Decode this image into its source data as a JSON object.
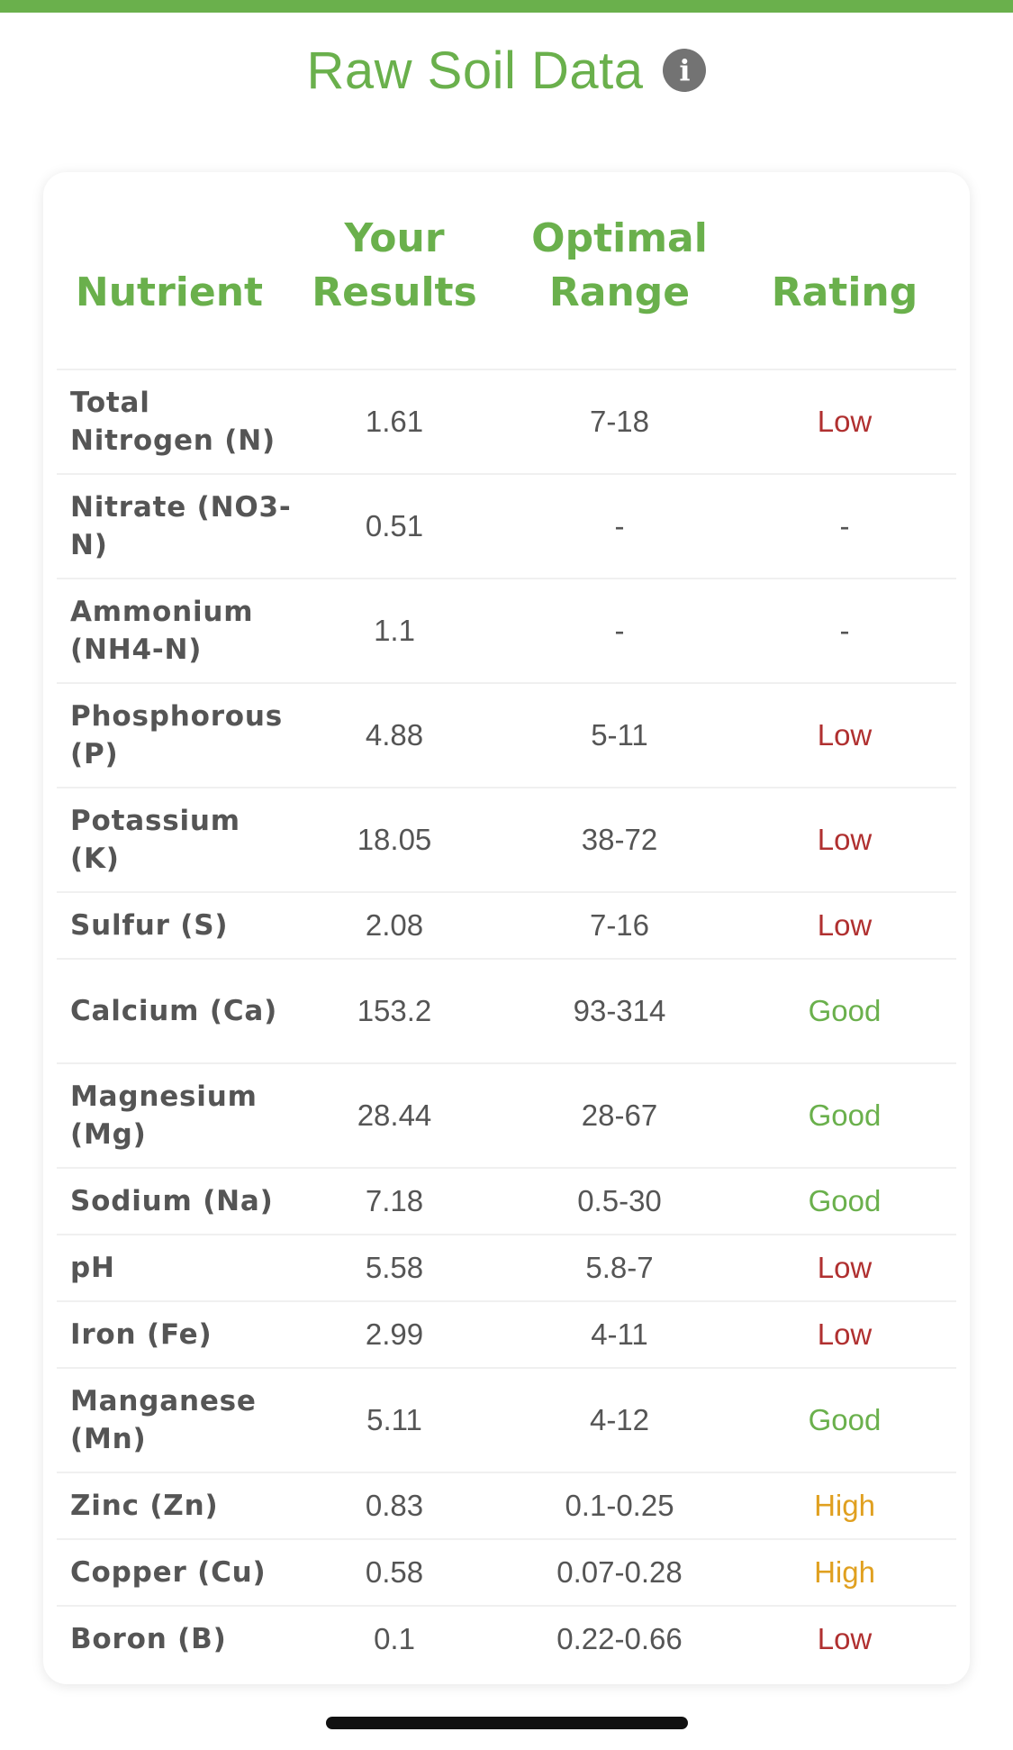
{
  "title": "Raw Soil Data",
  "info_icon_glyph": "i",
  "header": {
    "nutrient": "Nutrient",
    "your_results": "Your Results",
    "optimal_range": "Optimal Range",
    "rating": "Rating"
  },
  "colors": {
    "accent_green": "#6ab04c",
    "low": "#b03030",
    "good": "#6ab04c",
    "high": "#e0a020",
    "neutral": "#555555"
  },
  "rows": [
    {
      "nutrient": "Total Nitrogen (N)",
      "result": "1.61",
      "range": "7-18",
      "rating": "Low"
    },
    {
      "nutrient": "Nitrate (NO3-N)",
      "result": "0.51",
      "range": "-",
      "rating": "-"
    },
    {
      "nutrient": "Ammonium (NH4-N)",
      "result": "1.1",
      "range": "-",
      "rating": "-"
    },
    {
      "nutrient": "Phosphorous (P)",
      "result": "4.88",
      "range": "5-11",
      "rating": "Low"
    },
    {
      "nutrient": "Potassium (K)",
      "result": "18.05",
      "range": "38-72",
      "rating": "Low"
    },
    {
      "nutrient": "Sulfur (S)",
      "result": "2.08",
      "range": "7-16",
      "rating": "Low"
    },
    {
      "nutrient": "Calcium (Ca)",
      "result": "153.2",
      "range": "93-314",
      "rating": "Good"
    },
    {
      "nutrient": "Magnesium (Mg)",
      "result": "28.44",
      "range": "28-67",
      "rating": "Good"
    },
    {
      "nutrient": "Sodium (Na)",
      "result": "7.18",
      "range": "0.5-30",
      "rating": "Good"
    },
    {
      "nutrient": "pH",
      "result": "5.58",
      "range": "5.8-7",
      "rating": "Low"
    },
    {
      "nutrient": "Iron (Fe)",
      "result": "2.99",
      "range": "4-11",
      "rating": "Low"
    },
    {
      "nutrient": "Manganese (Mn)",
      "result": "5.11",
      "range": "4-12",
      "rating": "Good"
    },
    {
      "nutrient": "Zinc (Zn)",
      "result": "0.83",
      "range": "0.1-0.25",
      "rating": "High"
    },
    {
      "nutrient": "Copper (Cu)",
      "result": "0.58",
      "range": "0.07-0.28",
      "rating": "High"
    },
    {
      "nutrient": "Boron (B)",
      "result": "0.1",
      "range": "0.22-0.66",
      "rating": "Low"
    }
  ]
}
